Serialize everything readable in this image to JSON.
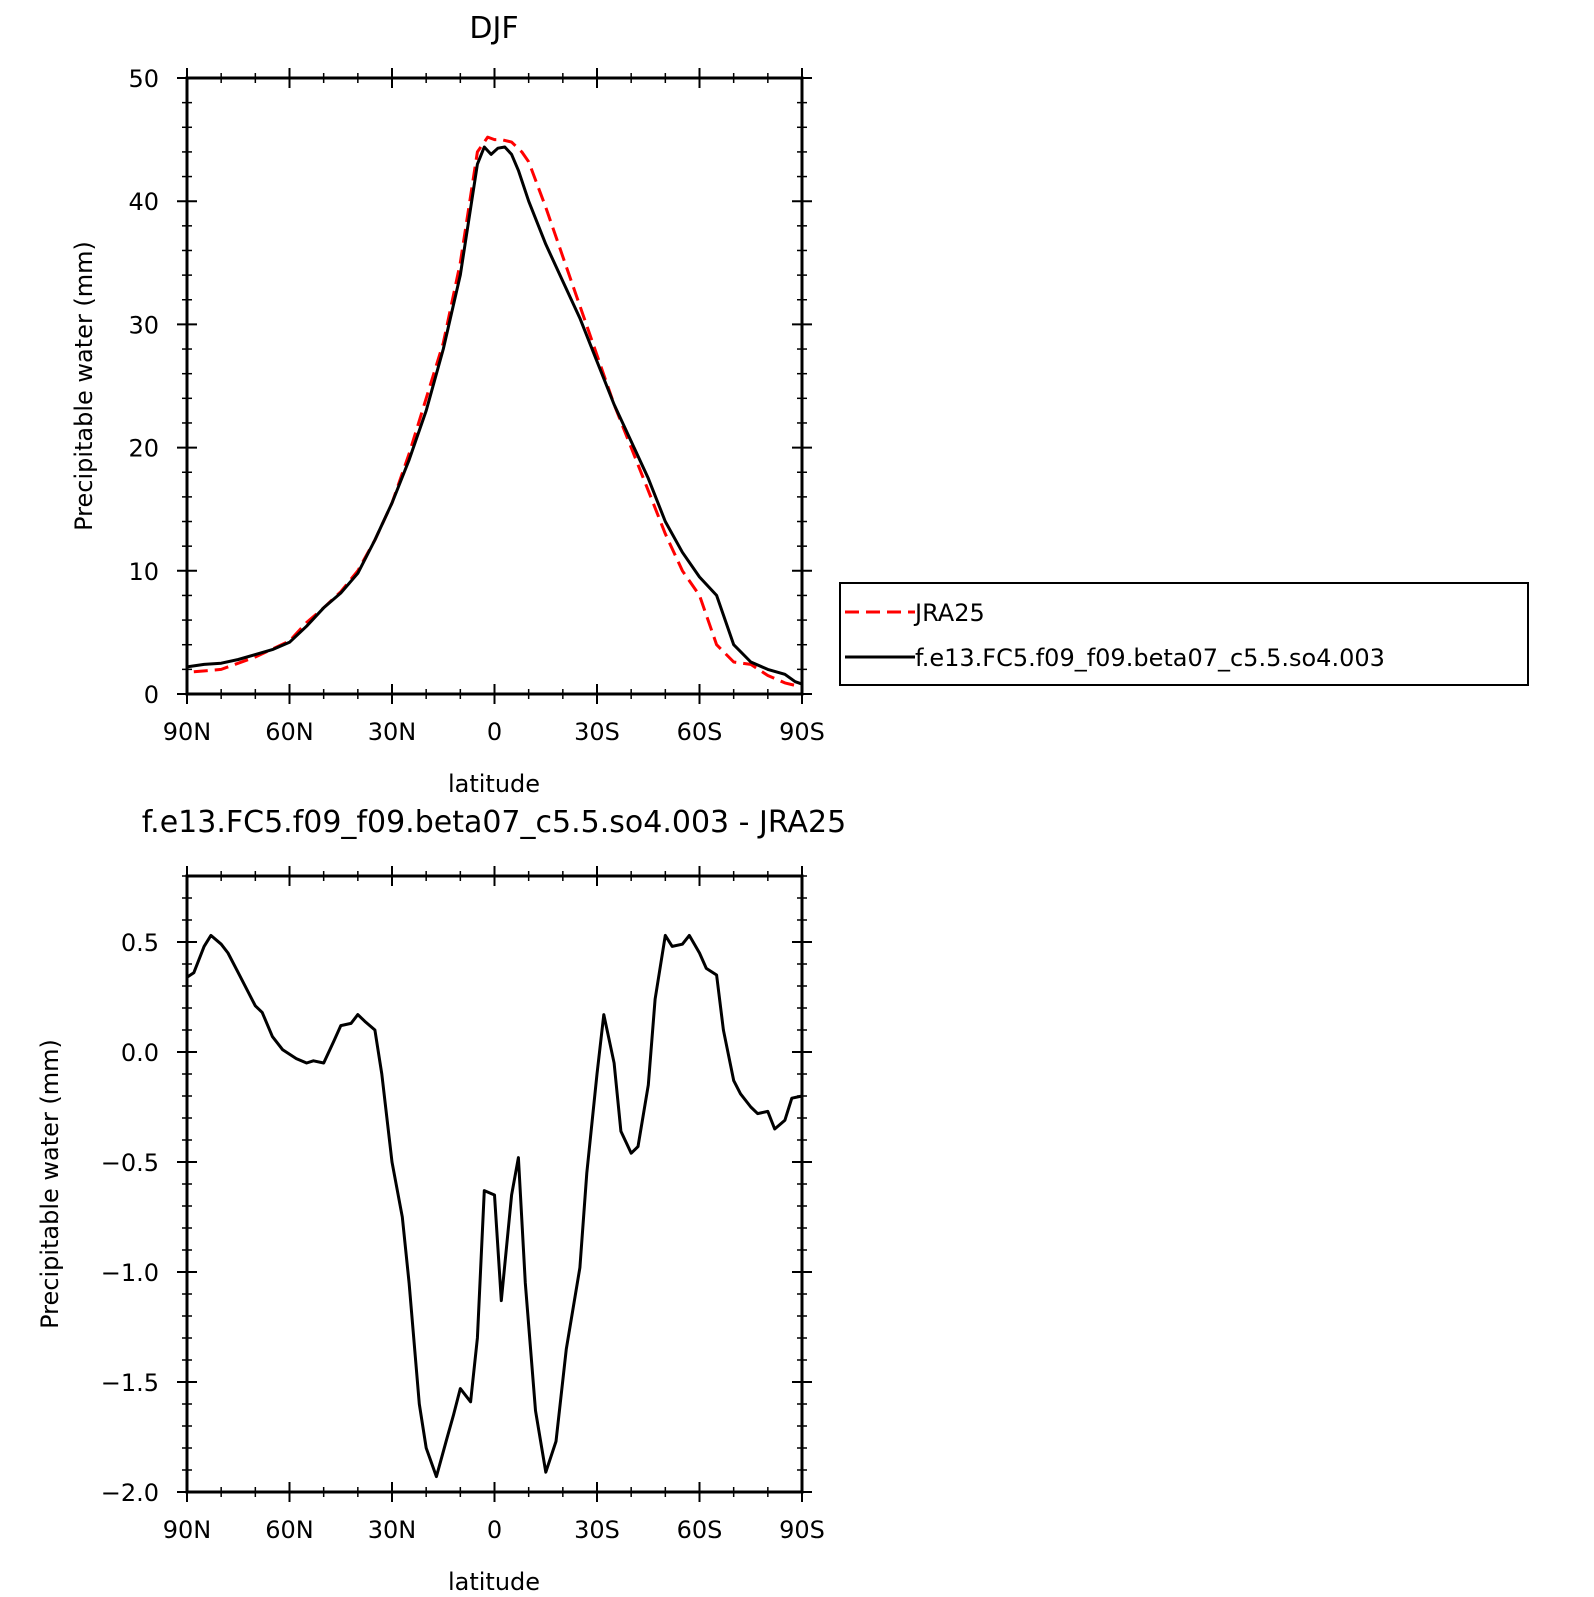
{
  "chart_data": [
    {
      "type": "line",
      "title": "DJF",
      "xlabel": "latitude",
      "ylabel": "Precipitable water (mm)",
      "xlim": [
        90,
        -90
      ],
      "ylim": [
        0,
        50
      ],
      "xticks": [
        90,
        60,
        30,
        0,
        -30,
        -60,
        -90
      ],
      "xtick_labels": [
        "90N",
        "60N",
        "30N",
        "0",
        "30S",
        "60S",
        "90S"
      ],
      "yticks": [
        0,
        10,
        20,
        30,
        40,
        50
      ],
      "ytick_labels": [
        "0",
        "10",
        "20",
        "30",
        "40",
        "50"
      ],
      "legend": "right",
      "series": [
        {
          "name": "JRA25",
          "color": "#ff0000",
          "dash": "dashed",
          "x": [
            88,
            80,
            70,
            60,
            55,
            50,
            45,
            40,
            35,
            30,
            25,
            20,
            15,
            10,
            5,
            2,
            0,
            -2,
            -5,
            -8,
            -10,
            -15,
            -20,
            -25,
            -30,
            -35,
            -40,
            -45,
            -50,
            -55,
            -60,
            -65,
            -70,
            -75,
            -80,
            -85,
            -88,
            -90
          ],
          "y": [
            1.8,
            2.0,
            3.0,
            4.3,
            5.8,
            7.0,
            8.3,
            10.0,
            12.5,
            15.5,
            19.5,
            24.0,
            28.5,
            35.0,
            44.0,
            45.2,
            45.0,
            45.0,
            44.8,
            44.0,
            43.2,
            39.5,
            35.5,
            31.5,
            27.5,
            23.5,
            20.0,
            16.5,
            13.0,
            10.0,
            8.0,
            4.0,
            2.6,
            2.4,
            1.5,
            0.9,
            0.7,
            0.7
          ]
        },
        {
          "name": "f.e13.FC5.f09_f09.beta07_c5.5.so4.003",
          "color": "#000000",
          "dash": "solid",
          "x": [
            90,
            85,
            80,
            75,
            70,
            65,
            60,
            55,
            50,
            45,
            40,
            35,
            30,
            25,
            20,
            15,
            10,
            5,
            3,
            1,
            -1,
            -3,
            -5,
            -7,
            -10,
            -15,
            -20,
            -25,
            -30,
            -35,
            -40,
            -45,
            -50,
            -55,
            -60,
            -65,
            -70,
            -75,
            -80,
            -85,
            -88,
            -90
          ],
          "y": [
            2.2,
            2.4,
            2.5,
            2.8,
            3.2,
            3.6,
            4.2,
            5.5,
            7.0,
            8.2,
            9.8,
            12.5,
            15.5,
            19.0,
            23.0,
            28.0,
            34.0,
            43.0,
            44.4,
            43.8,
            44.3,
            44.4,
            43.8,
            42.5,
            40.0,
            36.5,
            33.5,
            30.5,
            27.0,
            23.5,
            20.5,
            17.5,
            14.0,
            11.5,
            9.5,
            8.0,
            4.0,
            2.6,
            2.0,
            1.6,
            1.0,
            0.8
          ]
        }
      ]
    },
    {
      "type": "line",
      "title": "f.e13.FC5.f09_f09.beta07_c5.5.so4.003 - JRA25",
      "xlabel": "latitude",
      "ylabel": "Precipitable water (mm)",
      "xlim": [
        90,
        -90
      ],
      "ylim": [
        -2.0,
        0.8
      ],
      "xticks": [
        90,
        60,
        30,
        0,
        -30,
        -60,
        -90
      ],
      "xtick_labels": [
        "90N",
        "60N",
        "30N",
        "0",
        "30S",
        "60S",
        "90S"
      ],
      "yticks": [
        0.5,
        0.0,
        -0.5,
        -1.0,
        -1.5,
        -2.0
      ],
      "ytick_labels": [
        "0.5",
        "0.0",
        "−0.5",
        "−1.0",
        "−1.5",
        "−2.0"
      ],
      "series": [
        {
          "color": "#000000",
          "dash": "solid",
          "x": [
            90,
            88,
            85,
            83,
            80,
            78,
            75,
            70,
            68,
            65,
            62,
            58,
            55,
            53,
            50,
            47,
            45,
            42,
            40,
            38,
            35,
            33,
            30,
            27,
            25,
            22,
            20,
            17,
            14,
            12,
            10,
            7,
            5,
            3,
            0,
            -2,
            -5,
            -7,
            -9,
            -12,
            -15,
            -18,
            -21,
            -25,
            -27,
            -30,
            -32,
            -35,
            -37,
            -40,
            -42,
            -45,
            -47,
            -50,
            -52,
            -55,
            -57,
            -60,
            -62,
            -65,
            -67,
            -70,
            -72,
            -75,
            -77,
            -80,
            -82,
            -85,
            -87,
            -90
          ],
          "y": [
            0.34,
            0.36,
            0.48,
            0.53,
            0.49,
            0.45,
            0.36,
            0.21,
            0.18,
            0.07,
            0.01,
            -0.03,
            -0.05,
            -0.04,
            -0.05,
            0.05,
            0.12,
            0.13,
            0.17,
            0.14,
            0.1,
            -0.1,
            -0.5,
            -0.75,
            -1.05,
            -1.6,
            -1.8,
            -1.93,
            -1.76,
            -1.65,
            -1.53,
            -1.59,
            -1.3,
            -0.63,
            -0.65,
            -1.13,
            -0.65,
            -0.48,
            -1.05,
            -1.63,
            -1.91,
            -1.77,
            -1.35,
            -0.98,
            -0.55,
            -0.1,
            0.17,
            -0.05,
            -0.36,
            -0.46,
            -0.43,
            -0.15,
            0.24,
            0.53,
            0.48,
            0.49,
            0.53,
            0.45,
            0.38,
            0.35,
            0.1,
            -0.13,
            -0.19,
            -0.25,
            -0.28,
            -0.27,
            -0.35,
            -0.31,
            -0.21,
            -0.2
          ]
        }
      ]
    }
  ],
  "legend": {
    "entries": [
      "JRA25",
      "f.e13.FC5.f09_f09.beta07_c5.5.so4.003"
    ]
  }
}
